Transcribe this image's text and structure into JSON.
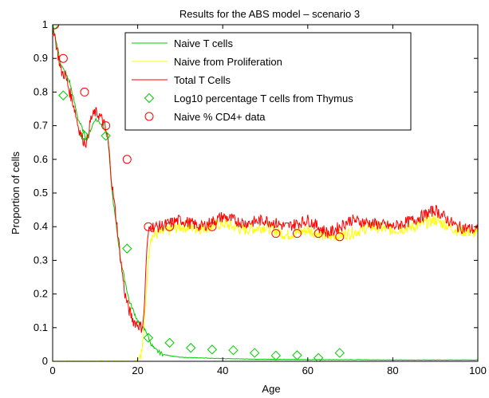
{
  "chart_data": {
    "type": "line",
    "title": "Results for  the ABS model – scenario 3",
    "xlabel": "Age",
    "ylabel": "Proportion of cells",
    "xlim": [
      0,
      100
    ],
    "ylim": [
      0,
      1
    ],
    "xticks": [
      0,
      20,
      40,
      60,
      80,
      100
    ],
    "yticks": [
      0,
      0.1,
      0.2,
      0.3,
      0.4,
      0.5,
      0.6,
      0.7,
      0.8,
      0.9,
      1
    ],
    "legend_position": "top-right",
    "grid": false,
    "series": [
      {
        "name": "Naive T cells",
        "kind": "line",
        "color": "#00cc00",
        "x": [
          0,
          0.5,
          2,
          4,
          6,
          8,
          10,
          12,
          13,
          14,
          16,
          18,
          20,
          21,
          22,
          23,
          24,
          26,
          30,
          40,
          50,
          60,
          70,
          80,
          90,
          100
        ],
        "y": [
          1,
          0.97,
          0.88,
          0.83,
          0.72,
          0.66,
          0.72,
          0.7,
          0.66,
          0.5,
          0.3,
          0.18,
          0.12,
          0.1,
          0.09,
          0.055,
          0.035,
          0.02,
          0.012,
          0.008,
          0.006,
          0.005,
          0.005,
          0.004,
          0.004,
          0.004
        ]
      },
      {
        "name": "Naive from Proliferation",
        "kind": "line",
        "color": "#ffff00",
        "x": [
          0,
          0.3,
          5,
          10,
          15,
          19,
          20,
          21,
          21.5,
          22,
          22.5,
          23,
          25,
          30,
          35,
          40,
          45,
          50,
          55,
          60,
          65,
          70,
          75,
          80,
          85,
          90,
          95,
          100
        ],
        "y": [
          0,
          0,
          0,
          0,
          0,
          0,
          0.005,
          0.03,
          0.1,
          0.2,
          0.3,
          0.37,
          0.38,
          0.4,
          0.395,
          0.41,
          0.39,
          0.4,
          0.375,
          0.39,
          0.37,
          0.38,
          0.4,
          0.39,
          0.4,
          0.42,
          0.39,
          0.38
        ]
      },
      {
        "name": "Total T Cells",
        "kind": "line",
        "color": "#ff0000",
        "x": [
          0,
          0.5,
          1,
          2,
          3,
          4,
          5,
          6,
          7,
          8,
          9,
          10,
          11,
          12,
          13,
          14,
          15,
          16,
          17,
          18,
          19,
          20,
          21,
          21.5,
          22,
          22.5,
          23,
          25,
          30,
          35,
          40,
          45,
          50,
          55,
          60,
          65,
          70,
          75,
          80,
          85,
          90,
          95,
          100
        ],
        "y": [
          1,
          0.97,
          0.93,
          0.86,
          0.85,
          0.8,
          0.76,
          0.7,
          0.66,
          0.65,
          0.72,
          0.74,
          0.73,
          0.71,
          0.66,
          0.52,
          0.42,
          0.3,
          0.2,
          0.15,
          0.12,
          0.11,
          0.1,
          0.14,
          0.3,
          0.38,
          0.4,
          0.4,
          0.42,
          0.4,
          0.43,
          0.41,
          0.42,
          0.4,
          0.42,
          0.38,
          0.42,
          0.41,
          0.4,
          0.42,
          0.45,
          0.4,
          0.39
        ]
      },
      {
        "name": "Log10 percentage T cells from Thymus",
        "kind": "scatter",
        "marker": "diamond",
        "color": "#00cc00",
        "x": [
          0.5,
          2.5,
          7.5,
          12.5,
          17.5,
          22.5,
          27.5,
          32.5,
          37.5,
          42.5,
          47.5,
          52.5,
          57.5,
          62.5,
          67.5
        ],
        "y": [
          1,
          0.79,
          0.67,
          0.67,
          0.335,
          0.07,
          0.055,
          0.04,
          0.035,
          0.033,
          0.025,
          0.017,
          0.018,
          0.01,
          0.025
        ]
      },
      {
        "name": "Naive % CD4+ data",
        "kind": "scatter",
        "marker": "circle",
        "color": "#ff0000",
        "x": [
          0.5,
          2.5,
          7.5,
          12.5,
          17.5,
          22.5,
          27.5,
          37.5,
          52.5,
          57.5,
          62.5,
          67.5
        ],
        "y": [
          1,
          0.9,
          0.8,
          0.7,
          0.6,
          0.4,
          0.4,
          0.4,
          0.38,
          0.38,
          0.38,
          0.37
        ]
      }
    ]
  }
}
